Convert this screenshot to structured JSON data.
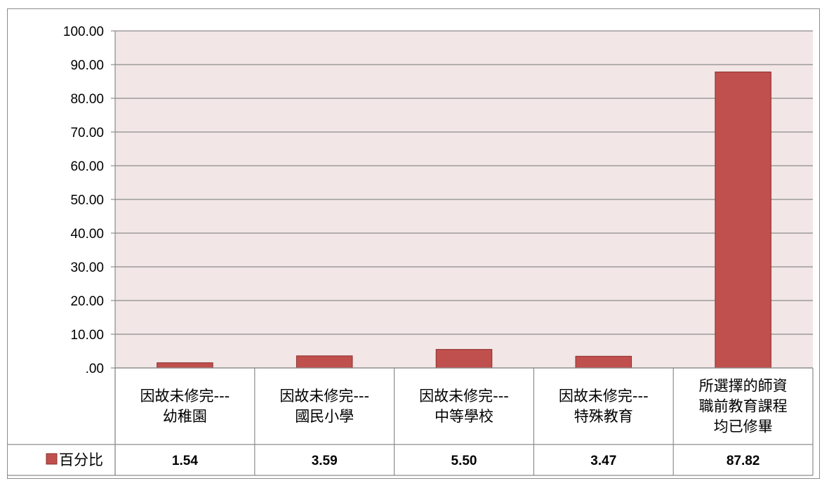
{
  "chart_data": {
    "type": "bar",
    "categories": [
      [
        "因故未修完---",
        "幼稚園"
      ],
      [
        "因故未修完---",
        "國民小學"
      ],
      [
        "因故未修完---",
        "中等學校"
      ],
      [
        "因故未修完---",
        "特殊教育"
      ],
      [
        "所選擇的師資",
        "職前教育課程",
        "均已修畢"
      ]
    ],
    "series": [
      {
        "name": "百分比",
        "values": [
          1.54,
          3.59,
          5.5,
          3.47,
          87.82
        ],
        "color": "#c0504d"
      }
    ],
    "value_labels": [
      "1.54",
      "3.59",
      "5.50",
      "3.47",
      "87.82"
    ],
    "y_tick_labels": [
      "100.00",
      "90.00",
      "80.00",
      "70.00",
      "60.00",
      "50.00",
      "40.00",
      "30.00",
      "20.00",
      "10.00",
      ".00"
    ],
    "ylim": [
      0,
      100
    ],
    "grid": true,
    "plot_background": "#f2e6e6",
    "legend": "data-table-left",
    "title": "",
    "xlabel": "",
    "ylabel": ""
  }
}
